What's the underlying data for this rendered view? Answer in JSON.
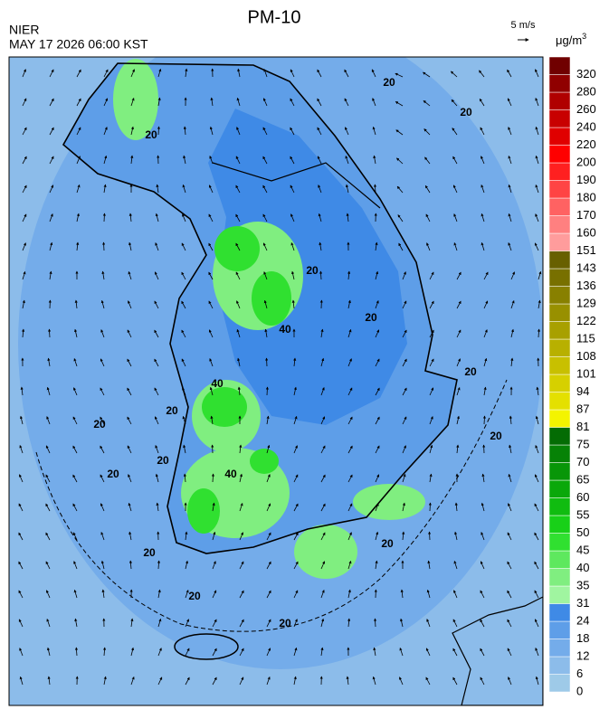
{
  "header": {
    "title": "PM-10",
    "agency": "NIER",
    "timestamp": "MAY 17 2026 06:00 KST",
    "wind_scale": "5 m/s"
  },
  "legend": {
    "unit": "μg/m",
    "unit_superscript": "3",
    "bins": [
      {
        "label": "0",
        "color": "#9ecae8"
      },
      {
        "label": "6",
        "color": "#8cbcea"
      },
      {
        "label": "12",
        "color": "#74acea"
      },
      {
        "label": "18",
        "color": "#5e9ee8"
      },
      {
        "label": "24",
        "color": "#3f8ae6"
      },
      {
        "label": "31",
        "color": "#a0f5a0"
      },
      {
        "label": "35",
        "color": "#80ee80"
      },
      {
        "label": "40",
        "color": "#5ee85e"
      },
      {
        "label": "45",
        "color": "#30e030"
      },
      {
        "label": "50",
        "color": "#18d018"
      },
      {
        "label": "55",
        "color": "#10bc10"
      },
      {
        "label": "60",
        "color": "#0aa80a"
      },
      {
        "label": "65",
        "color": "#089608"
      },
      {
        "label": "70",
        "color": "#068206"
      },
      {
        "label": "75",
        "color": "#046c04"
      },
      {
        "label": "81",
        "color": "#f4f400"
      },
      {
        "label": "87",
        "color": "#e4e000"
      },
      {
        "label": "94",
        "color": "#d6d000"
      },
      {
        "label": "101",
        "color": "#c8c000"
      },
      {
        "label": "108",
        "color": "#b8b000"
      },
      {
        "label": "115",
        "color": "#a8a000"
      },
      {
        "label": "122",
        "color": "#989000"
      },
      {
        "label": "129",
        "color": "#888000"
      },
      {
        "label": "136",
        "color": "#787000"
      },
      {
        "label": "143",
        "color": "#686000"
      },
      {
        "label": "151",
        "color": "#ff9c9c"
      },
      {
        "label": "160",
        "color": "#ff8080"
      },
      {
        "label": "170",
        "color": "#ff6262"
      },
      {
        "label": "180",
        "color": "#ff4444"
      },
      {
        "label": "190",
        "color": "#ff2020"
      },
      {
        "label": "200",
        "color": "#ff0000"
      },
      {
        "label": "220",
        "color": "#e00000"
      },
      {
        "label": "240",
        "color": "#c80000"
      },
      {
        "label": "260",
        "color": "#b00000"
      },
      {
        "label": "280",
        "color": "#900000"
      },
      {
        "label": "320",
        "color": "#700000"
      }
    ]
  },
  "contour_labels": [
    "20",
    "20",
    "20",
    "20",
    "20",
    "20",
    "20",
    "20",
    "20",
    "20",
    "20",
    "20",
    "20",
    "40",
    "40",
    "40",
    "20",
    "20"
  ]
}
